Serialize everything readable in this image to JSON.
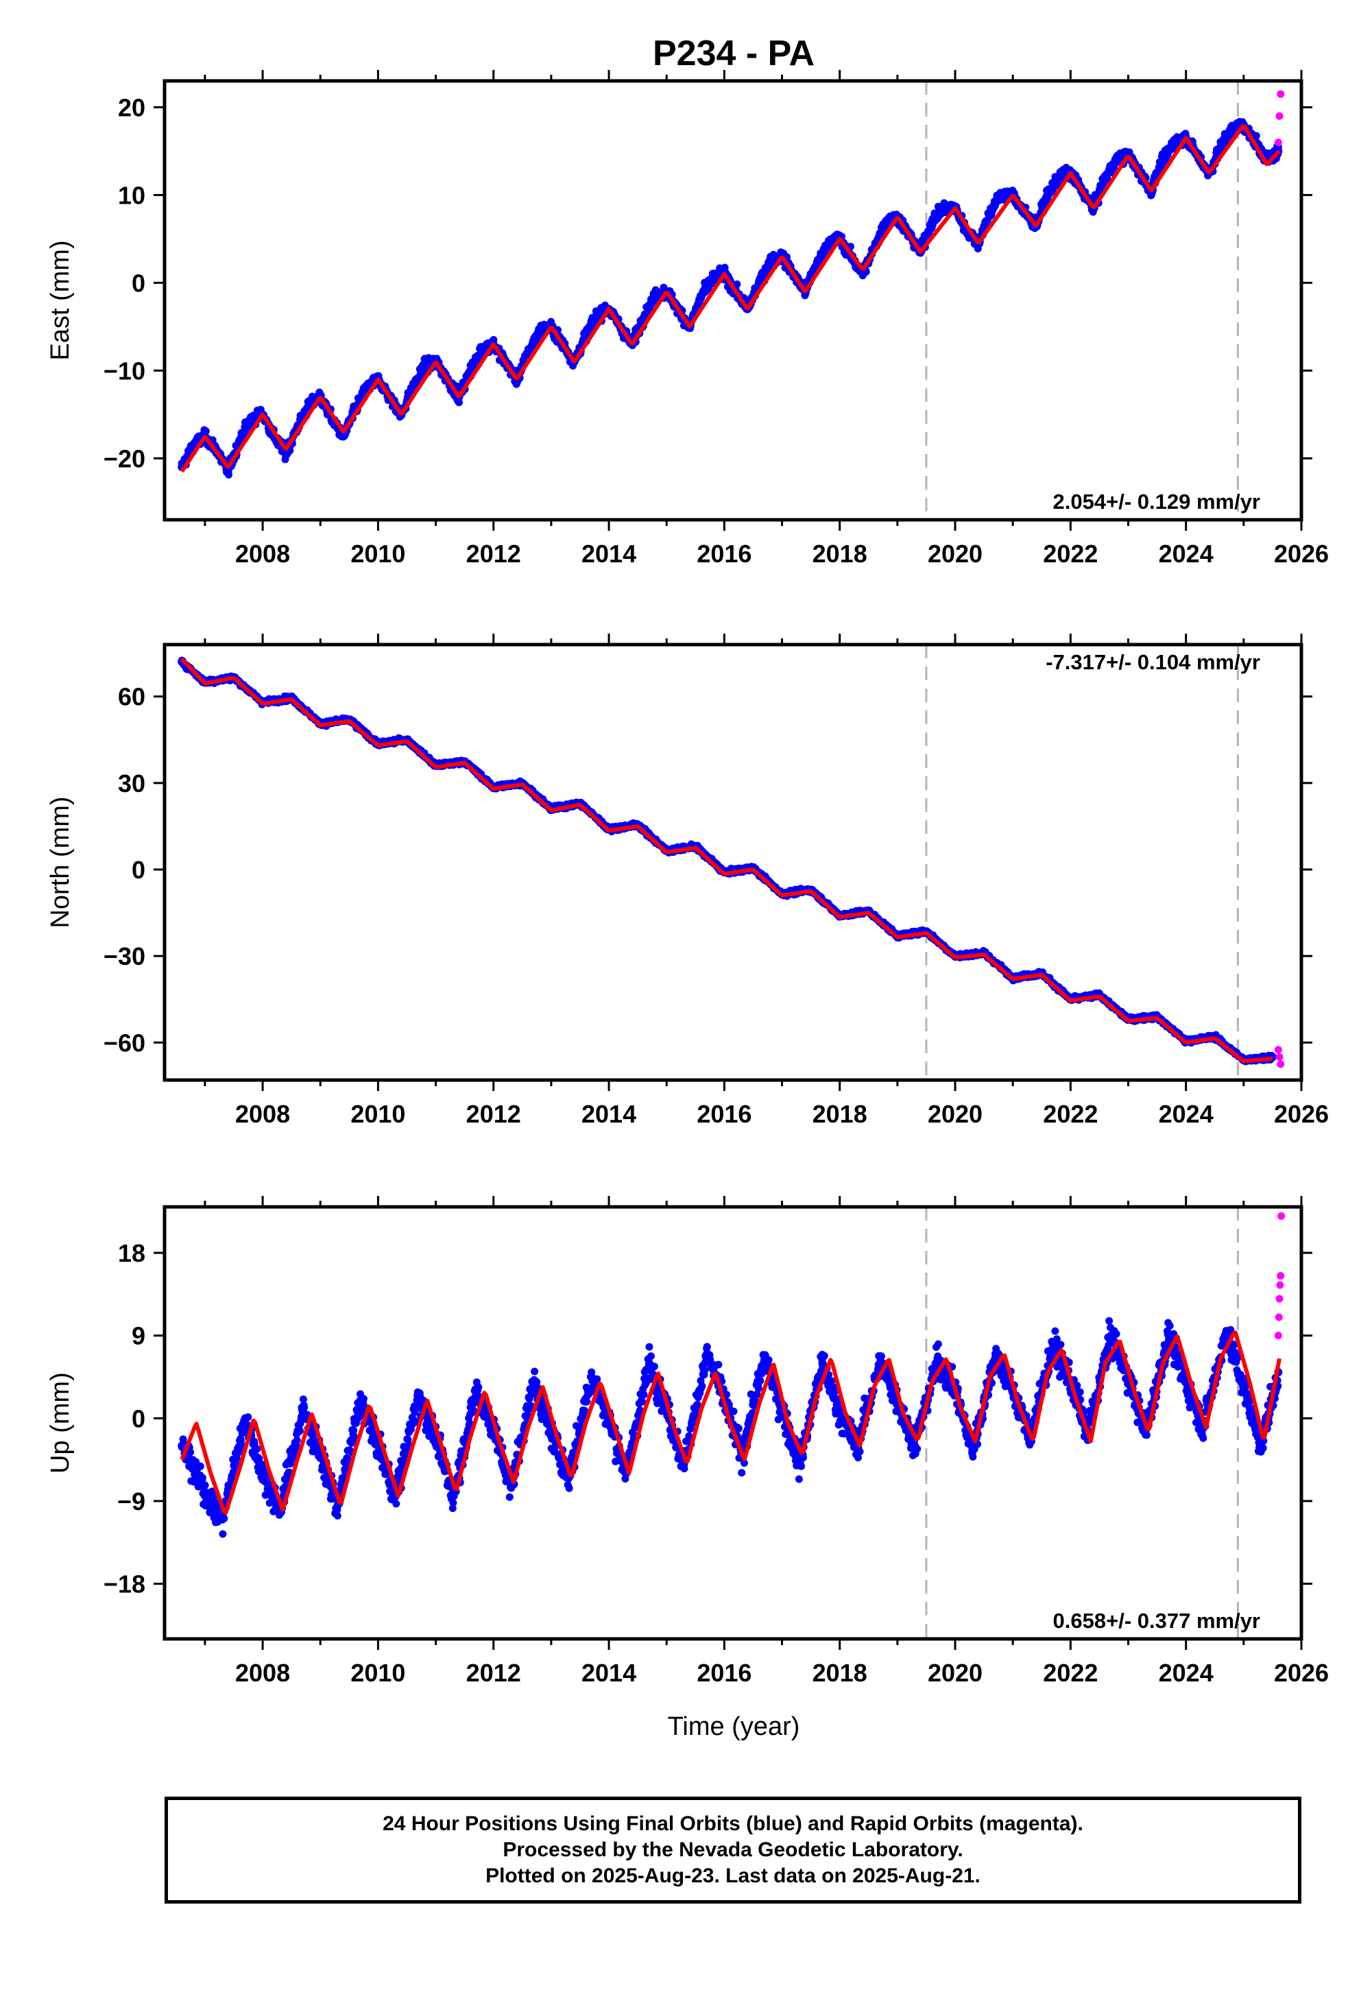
{
  "title": "P234 - PA",
  "xlabel": "Time (year)",
  "footer": {
    "line1": "24 Hour Positions Using Final Orbits (blue) and Rapid Orbits (magenta).",
    "line2": "Processed by the Nevada Geodetic Laboratory.",
    "line3": "Plotted on 2025-Aug-23. Last data on 2025-Aug-21."
  },
  "colors": {
    "final_orbits": "#0000ff",
    "rapid_orbits": "#ff00ff",
    "model_fit": "#ff0000",
    "event_lines": "#b4b4b4"
  },
  "chart_data": [
    {
      "type": "scatter",
      "panel": "east",
      "ylabel": "East (mm)",
      "xlim": [
        2006.3,
        2026.0
      ],
      "ylim": [
        -27,
        23
      ],
      "xticks": [
        2008,
        2010,
        2012,
        2014,
        2016,
        2018,
        2020,
        2022,
        2024,
        2026
      ],
      "yticks": [
        -20,
        -10,
        0,
        10,
        20
      ],
      "rate_label": "2.054+/- 0.129 mm/yr",
      "event_lines": [
        2019.5,
        2024.9
      ],
      "series": [
        {
          "name": "24 Hour Positions Using Final Orbits (blue)",
          "x": [
            2006.6,
            2006.8,
            2007.0,
            2007.2,
            2007.4,
            2007.6,
            2007.8,
            2008.0,
            2008.2,
            2008.4,
            2008.6,
            2008.8,
            2009.0,
            2009.2,
            2009.4,
            2009.6,
            2009.8,
            2010.0,
            2010.2,
            2010.4,
            2010.6,
            2010.8,
            2011.0,
            2011.2,
            2011.4,
            2011.6,
            2011.8,
            2012.0,
            2012.2,
            2012.4,
            2012.6,
            2012.8,
            2013.0,
            2013.2,
            2013.4,
            2013.6,
            2013.8,
            2014.0,
            2014.2,
            2014.4,
            2014.6,
            2014.8,
            2015.0,
            2015.2,
            2015.4,
            2015.6,
            2015.8,
            2016.0,
            2016.2,
            2016.4,
            2016.6,
            2016.8,
            2017.0,
            2017.2,
            2017.4,
            2017.6,
            2017.8,
            2018.0,
            2018.2,
            2018.4,
            2018.6,
            2018.8,
            2019.0,
            2019.2,
            2019.4,
            2019.6,
            2019.8,
            2020.0,
            2020.2,
            2020.4,
            2020.6,
            2020.8,
            2021.0,
            2021.2,
            2021.4,
            2021.6,
            2021.8,
            2022.0,
            2022.2,
            2022.4,
            2022.6,
            2022.8,
            2023.0,
            2023.2,
            2023.4,
            2023.6,
            2023.8,
            2024.0,
            2024.2,
            2024.4,
            2024.6,
            2024.8,
            2025.0,
            2025.2,
            2025.4,
            2025.6
          ],
          "y": [
            -21.0,
            -18.5,
            -17.5,
            -19.0,
            -21.5,
            -18.0,
            -15.5,
            -15.0,
            -17.5,
            -19.5,
            -16.5,
            -14.0,
            -13.0,
            -15.5,
            -17.5,
            -14.5,
            -12.0,
            -11.0,
            -13.0,
            -15.0,
            -12.0,
            -9.5,
            -9.0,
            -11.0,
            -13.0,
            -10.0,
            -7.5,
            -7.0,
            -9.0,
            -11.0,
            -8.0,
            -5.5,
            -5.0,
            -7.0,
            -9.0,
            -6.0,
            -3.5,
            -3.0,
            -5.0,
            -7.0,
            -4.0,
            -1.5,
            -1.0,
            -3.0,
            -5.0,
            -1.5,
            0.5,
            1.0,
            -1.0,
            -3.0,
            0.0,
            2.5,
            3.0,
            1.0,
            -1.0,
            2.0,
            4.5,
            5.0,
            3.0,
            1.0,
            4.0,
            7.0,
            7.5,
            5.5,
            3.5,
            7.0,
            8.5,
            8.5,
            6.0,
            4.5,
            8.0,
            10.0,
            10.0,
            8.0,
            6.5,
            10.0,
            12.0,
            12.5,
            10.5,
            8.5,
            12.0,
            14.0,
            14.5,
            12.5,
            10.5,
            14.0,
            16.0,
            16.5,
            14.5,
            12.5,
            15.5,
            17.5,
            18.0,
            16.0,
            14.0,
            15.0
          ]
        },
        {
          "name": "Rapid Orbits (magenta)",
          "x": [
            2025.6,
            2025.62,
            2025.64
          ],
          "y": [
            16.0,
            19.0,
            21.5
          ]
        },
        {
          "name": "Model fit (red)",
          "x": [
            2006.6,
            2007.0,
            2007.4,
            2008.0,
            2008.4,
            2009.0,
            2009.4,
            2010.0,
            2010.4,
            2011.0,
            2011.4,
            2012.0,
            2012.4,
            2013.0,
            2013.4,
            2014.0,
            2014.4,
            2015.0,
            2015.4,
            2016.0,
            2016.4,
            2017.0,
            2017.4,
            2018.0,
            2018.4,
            2019.0,
            2019.4,
            2020.0,
            2020.4,
            2021.0,
            2021.4,
            2022.0,
            2022.4,
            2023.0,
            2023.4,
            2024.0,
            2024.4,
            2025.0,
            2025.4,
            2025.62
          ],
          "y": [
            -21.5,
            -17.5,
            -21.0,
            -15.0,
            -19.0,
            -13.0,
            -17.0,
            -11.0,
            -15.0,
            -9.0,
            -13.0,
            -7.0,
            -11.0,
            -5.0,
            -9.0,
            -3.0,
            -7.0,
            -1.0,
            -5.0,
            1.0,
            -3.0,
            3.0,
            -1.0,
            5.0,
            1.5,
            7.5,
            3.5,
            8.5,
            4.5,
            10.0,
            6.5,
            12.5,
            8.5,
            14.5,
            10.5,
            16.5,
            12.5,
            18.0,
            13.5,
            15.0
          ]
        }
      ]
    },
    {
      "type": "scatter",
      "panel": "north",
      "ylabel": "North (mm)",
      "xlim": [
        2006.3,
        2026.0
      ],
      "ylim": [
        -73,
        78
      ],
      "xticks": [
        2008,
        2010,
        2012,
        2014,
        2016,
        2018,
        2020,
        2022,
        2024,
        2026
      ],
      "yticks": [
        -60,
        -30,
        0,
        30,
        60
      ],
      "rate_label": "-7.317+/- 0.104 mm/yr",
      "event_lines": [
        2019.5,
        2024.9
      ],
      "series": [
        {
          "name": "24 Hour Positions Using Final Orbits (blue)",
          "x": [
            2006.6,
            2007.0,
            2007.5,
            2008.0,
            2008.5,
            2009.0,
            2009.5,
            2010.0,
            2010.5,
            2011.0,
            2011.5,
            2012.0,
            2012.5,
            2013.0,
            2013.5,
            2014.0,
            2014.5,
            2015.0,
            2015.5,
            2016.0,
            2016.5,
            2017.0,
            2017.5,
            2018.0,
            2018.5,
            2019.0,
            2019.5,
            2020.0,
            2020.5,
            2021.0,
            2021.5,
            2022.0,
            2022.5,
            2023.0,
            2023.5,
            2024.0,
            2024.5,
            2025.0,
            2025.5
          ],
          "y": [
            72.0,
            65.0,
            66.5,
            58.0,
            59.5,
            50.5,
            52.0,
            43.5,
            45.0,
            36.0,
            37.5,
            28.5,
            30.0,
            21.0,
            23.0,
            14.0,
            15.5,
            6.5,
            8.0,
            -1.0,
            0.5,
            -8.5,
            -7.0,
            -16.0,
            -14.5,
            -23.0,
            -21.5,
            -30.0,
            -29.0,
            -37.5,
            -36.0,
            -45.0,
            -43.5,
            -52.0,
            -51.0,
            -59.5,
            -58.0,
            -66.0,
            -65.0
          ]
        },
        {
          "name": "Rapid Orbits (magenta)",
          "x": [
            2025.6,
            2025.62,
            2025.64
          ],
          "y": [
            -62.5,
            -65.0,
            -67.5
          ]
        },
        {
          "name": "Model fit (red)",
          "x": [
            2006.6,
            2007.0,
            2007.5,
            2008.0,
            2008.5,
            2009.0,
            2009.5,
            2010.0,
            2010.5,
            2011.0,
            2011.5,
            2012.0,
            2012.5,
            2013.0,
            2013.5,
            2014.0,
            2014.5,
            2015.0,
            2015.5,
            2016.0,
            2016.5,
            2017.0,
            2017.5,
            2018.0,
            2018.5,
            2019.0,
            2019.5,
            2020.0,
            2020.5,
            2021.0,
            2021.5,
            2022.0,
            2022.5,
            2023.0,
            2023.5,
            2024.0,
            2024.5,
            2025.0,
            2025.5
          ],
          "y": [
            73.0,
            64.5,
            66.5,
            57.5,
            59.0,
            50.0,
            51.5,
            43.0,
            44.5,
            35.5,
            37.0,
            28.0,
            29.5,
            20.5,
            22.5,
            13.5,
            15.0,
            6.0,
            7.5,
            -1.5,
            0.0,
            -9.0,
            -7.5,
            -16.5,
            -15.0,
            -23.5,
            -22.0,
            -30.5,
            -29.5,
            -38.0,
            -36.5,
            -45.5,
            -44.0,
            -52.5,
            -51.5,
            -60.0,
            -58.5,
            -66.5,
            -65.5
          ]
        }
      ]
    },
    {
      "type": "scatter",
      "panel": "up",
      "ylabel": "Up (mm)",
      "xlabel": "Time (year)",
      "xlim": [
        2006.3,
        2026.0
      ],
      "ylim": [
        -24,
        23
      ],
      "xticks": [
        2008,
        2010,
        2012,
        2014,
        2016,
        2018,
        2020,
        2022,
        2024,
        2026
      ],
      "yticks": [
        -18,
        -9,
        0,
        9,
        18
      ],
      "rate_label": "0.658+/- 0.377 mm/yr",
      "event_lines": [
        2019.5,
        2024.9
      ],
      "series": [
        {
          "name": "24 Hour Positions Using Final Orbits (blue)",
          "x": [
            2006.6,
            2007.0,
            2007.3,
            2007.7,
            2008.0,
            2008.3,
            2008.7,
            2009.0,
            2009.3,
            2009.7,
            2010.0,
            2010.3,
            2010.7,
            2011.0,
            2011.3,
            2011.7,
            2012.0,
            2012.3,
            2012.7,
            2013.0,
            2013.3,
            2013.7,
            2014.0,
            2014.3,
            2014.7,
            2015.0,
            2015.3,
            2015.7,
            2016.0,
            2016.3,
            2016.7,
            2017.0,
            2017.3,
            2017.7,
            2018.0,
            2018.3,
            2018.7,
            2019.0,
            2019.3,
            2019.7,
            2020.0,
            2020.3,
            2020.7,
            2021.0,
            2021.3,
            2021.7,
            2022.0,
            2022.3,
            2022.7,
            2023.0,
            2023.3,
            2023.7,
            2024.0,
            2024.3,
            2024.7,
            2025.0,
            2025.3,
            2025.6
          ],
          "y": [
            -3.0,
            -8.0,
            -11.0,
            0.0,
            -6.0,
            -10.0,
            1.0,
            -4.0,
            -9.5,
            2.0,
            -3.0,
            -8.5,
            2.5,
            -2.0,
            -8.5,
            3.0,
            -1.0,
            -7.5,
            4.0,
            -1.5,
            -6.5,
            4.5,
            0.0,
            -6.0,
            6.0,
            1.0,
            -5.0,
            7.0,
            2.0,
            -4.0,
            6.5,
            1.0,
            -5.0,
            6.0,
            0.5,
            -3.0,
            6.0,
            2.0,
            -3.0,
            6.5,
            3.0,
            -3.5,
            7.0,
            3.0,
            -2.0,
            8.0,
            4.0,
            -1.5,
            9.0,
            4.5,
            -1.5,
            9.0,
            4.0,
            -1.0,
            9.5,
            3.5,
            -3.0,
            5.0
          ]
        },
        {
          "name": "Rapid Orbits (magenta)",
          "x": [
            2025.6,
            2025.61,
            2025.62,
            2025.63,
            2025.64,
            2025.65
          ],
          "y": [
            9.0,
            11.0,
            13.0,
            14.5,
            15.5,
            22.0
          ]
        },
        {
          "name": "Model fit (red)",
          "x": [
            2006.6,
            2006.85,
            2007.1,
            2007.35,
            2007.6,
            2007.85,
            2008.1,
            2008.35,
            2008.6,
            2008.85,
            2009.1,
            2009.35,
            2009.6,
            2009.85,
            2010.1,
            2010.35,
            2010.6,
            2010.85,
            2011.1,
            2011.35,
            2011.6,
            2011.85,
            2012.1,
            2012.35,
            2012.6,
            2012.85,
            2013.1,
            2013.35,
            2013.6,
            2013.85,
            2014.1,
            2014.35,
            2014.6,
            2014.85,
            2015.1,
            2015.35,
            2015.6,
            2015.85,
            2016.1,
            2016.35,
            2016.6,
            2016.85,
            2017.1,
            2017.35,
            2017.6,
            2017.85,
            2018.1,
            2018.35,
            2018.6,
            2018.85,
            2019.1,
            2019.35,
            2019.6,
            2019.85,
            2020.1,
            2020.35,
            2020.6,
            2020.85,
            2021.1,
            2021.35,
            2021.6,
            2021.85,
            2022.1,
            2022.35,
            2022.6,
            2022.85,
            2023.1,
            2023.35,
            2023.6,
            2023.85,
            2024.1,
            2024.35,
            2024.6,
            2024.85,
            2025.1,
            2025.35,
            2025.62
          ],
          "y": [
            -4.5,
            -0.5,
            -6.0,
            -10.5,
            -5.5,
            0.0,
            -5.5,
            -10.0,
            -4.5,
            0.5,
            -4.5,
            -9.5,
            -3.5,
            1.5,
            -3.5,
            -8.5,
            -3.0,
            2.0,
            -3.0,
            -8.0,
            -2.0,
            3.0,
            -2.5,
            -7.0,
            -1.0,
            3.5,
            -2.0,
            -6.5,
            -0.5,
            4.0,
            -1.0,
            -6.0,
            0.5,
            5.0,
            -0.5,
            -5.0,
            1.0,
            5.0,
            -0.5,
            -4.5,
            1.5,
            6.0,
            -0.5,
            -4.0,
            2.5,
            6.5,
            0.5,
            -3.0,
            3.5,
            6.5,
            0.5,
            -2.5,
            4.0,
            6.5,
            1.0,
            -2.5,
            4.5,
            7.0,
            1.5,
            -2.5,
            5.0,
            7.5,
            2.0,
            -2.5,
            6.0,
            8.5,
            3.0,
            -1.5,
            6.0,
            9.0,
            3.5,
            -1.0,
            6.5,
            9.5,
            4.0,
            -2.5,
            6.5
          ]
        }
      ]
    }
  ]
}
